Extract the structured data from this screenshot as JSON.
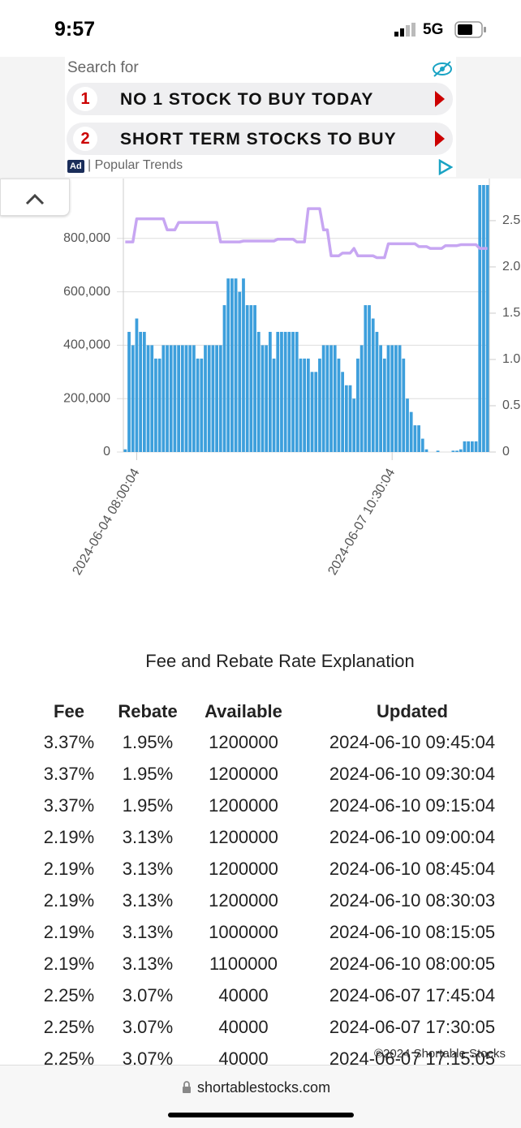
{
  "status_bar": {
    "time": "9:57",
    "network": "5G"
  },
  "ad": {
    "search_label": "Search for",
    "items": [
      {
        "number": "1",
        "text": "NO 1 STOCK TO BUY TODAY"
      },
      {
        "number": "2",
        "text": "SHORT TERM STOCKS TO BUY"
      }
    ],
    "badge": "Ad",
    "source": "Popular Trends"
  },
  "chart_data": {
    "type": "bar_line",
    "categories": [
      null,
      null,
      null,
      "2024-06-04 08:00:04",
      null,
      null,
      null,
      null,
      null,
      null,
      null,
      null,
      null,
      null,
      null,
      null,
      null,
      null,
      null,
      null,
      null,
      null,
      null,
      null,
      null,
      null,
      null,
      null,
      null,
      null,
      null,
      null,
      null,
      null,
      null,
      null,
      null,
      null,
      null,
      null,
      null,
      null,
      null,
      null,
      null,
      null,
      null,
      null,
      null,
      null,
      null,
      null,
      null,
      null,
      null,
      null,
      null,
      null,
      null,
      null,
      null,
      null,
      null,
      null,
      null,
      null,
      null,
      null,
      null,
      null,
      "2024-06-07 10:30:04",
      null,
      null,
      null,
      null,
      null,
      null,
      null,
      null,
      null,
      null,
      null,
      null,
      null,
      null,
      null,
      null,
      null,
      null,
      null,
      null,
      null,
      null,
      null,
      null,
      null
    ],
    "series": [
      {
        "name": "Available",
        "color": "#3d9fdc",
        "values": [
          10000,
          450000,
          400000,
          500000,
          450000,
          450000,
          400000,
          400000,
          350000,
          350000,
          400000,
          400000,
          400000,
          400000,
          400000,
          400000,
          400000,
          400000,
          400000,
          350000,
          350000,
          400000,
          400000,
          400000,
          400000,
          400000,
          550000,
          650000,
          650000,
          650000,
          600000,
          650000,
          550000,
          550000,
          550000,
          450000,
          400000,
          400000,
          450000,
          350000,
          450000,
          450000,
          450000,
          450000,
          450000,
          450000,
          350000,
          350000,
          350000,
          300000,
          300000,
          350000,
          400000,
          400000,
          400000,
          400000,
          350000,
          300000,
          250000,
          250000,
          200000,
          350000,
          400000,
          550000,
          550000,
          500000,
          450000,
          400000,
          350000,
          400000,
          400000,
          400000,
          400000,
          350000,
          200000,
          150000,
          100000,
          100000,
          50000,
          10000,
          0,
          0,
          5000,
          0,
          0,
          0,
          5000,
          5000,
          10000,
          40000,
          40000,
          40000,
          40000,
          1000000,
          1000000,
          1000000
        ]
      },
      {
        "name": "Fee",
        "color": "#c7a6f2",
        "axis": "y2",
        "values": [
          2.27,
          2.27,
          2.27,
          2.52,
          2.52,
          2.52,
          2.52,
          2.52,
          2.52,
          2.52,
          2.52,
          2.4,
          2.4,
          2.4,
          2.48,
          2.48,
          2.48,
          2.48,
          2.48,
          2.48,
          2.48,
          2.48,
          2.48,
          2.48,
          2.48,
          2.27,
          2.27,
          2.27,
          2.27,
          2.27,
          2.27,
          2.28,
          2.28,
          2.28,
          2.28,
          2.28,
          2.28,
          2.28,
          2.28,
          2.28,
          2.3,
          2.3,
          2.3,
          2.3,
          2.3,
          2.27,
          2.27,
          2.27,
          2.63,
          2.63,
          2.63,
          2.63,
          2.4,
          2.4,
          2.12,
          2.12,
          2.12,
          2.15,
          2.15,
          2.15,
          2.2,
          2.12,
          2.12,
          2.12,
          2.12,
          2.12,
          2.1,
          2.1,
          2.1,
          2.25,
          2.25,
          2.25,
          2.25,
          2.25,
          2.25,
          2.25,
          2.25,
          2.22,
          2.22,
          2.22,
          2.2,
          2.2,
          2.2,
          2.2,
          2.23,
          2.23,
          2.23,
          2.23,
          2.24,
          2.24,
          2.24,
          2.24,
          2.24,
          2.2,
          2.2,
          2.2
        ]
      }
    ],
    "ylim": [
      0,
      1000000
    ],
    "yticks": [
      0,
      {
        "value": 200000,
        "label": "200,000"
      },
      {
        "value": 400000,
        "label": "400,000"
      },
      {
        "value": 600000,
        "label": "600,000"
      },
      {
        "value": 800000,
        "label": "800,000"
      }
    ],
    "y2lim": [
      0,
      2.885
    ],
    "y2ticks": [
      0,
      0.5,
      {
        "value": 1,
        "label": "1.0"
      },
      1.5,
      {
        "value": 2,
        "label": "2.0"
      },
      2.5
    ],
    "grid": true
  },
  "table": {
    "title": "Fee and Rebate Rate Explanation",
    "columns": [
      "Fee",
      "Rebate",
      "Available",
      "Updated"
    ],
    "rows": [
      [
        "3.37%",
        "1.95%",
        "1200000",
        "2024-06-10 09:45:04"
      ],
      [
        "3.37%",
        "1.95%",
        "1200000",
        "2024-06-10 09:30:04"
      ],
      [
        "3.37%",
        "1.95%",
        "1200000",
        "2024-06-10 09:15:04"
      ],
      [
        "2.19%",
        "3.13%",
        "1200000",
        "2024-06-10 09:00:04"
      ],
      [
        "2.19%",
        "3.13%",
        "1200000",
        "2024-06-10 08:45:04"
      ],
      [
        "2.19%",
        "3.13%",
        "1200000",
        "2024-06-10 08:30:03"
      ],
      [
        "2.19%",
        "3.13%",
        "1000000",
        "2024-06-10 08:15:05"
      ],
      [
        "2.19%",
        "3.13%",
        "1100000",
        "2024-06-10 08:00:05"
      ],
      [
        "2.25%",
        "3.07%",
        "40000",
        "2024-06-07 17:45:04"
      ],
      [
        "2.25%",
        "3.07%",
        "40000",
        "2024-06-07 17:30:05"
      ],
      [
        "2.25%",
        "3.07%",
        "40000",
        "2024-06-07 17:15:05"
      ]
    ]
  },
  "footer": {
    "copyright": "©2024 Shortable Stocks"
  },
  "browser": {
    "url": "shortablestocks.com"
  }
}
